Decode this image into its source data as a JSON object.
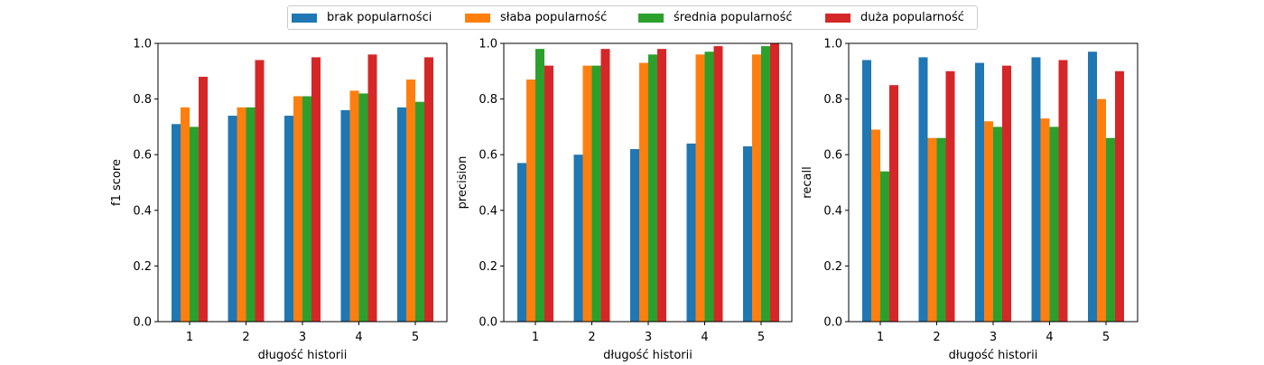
{
  "legend": {
    "items": [
      {
        "label": "brak popularności",
        "color": "#1f77b4"
      },
      {
        "label": "słaba popularność",
        "color": "#ff7f0e"
      },
      {
        "label": "średnia popularność",
        "color": "#2ca02c"
      },
      {
        "label": "duża popularność",
        "color": "#d62728"
      }
    ]
  },
  "chart_data": [
    {
      "type": "bar",
      "xlabel": "długość historii",
      "ylabel": "f1 score",
      "categories": [
        "1",
        "2",
        "3",
        "4",
        "5"
      ],
      "ylim": [
        0,
        1.0
      ],
      "yticks": [
        "0.0",
        "0.2",
        "0.4",
        "0.6",
        "0.8",
        "1.0"
      ],
      "series": [
        {
          "name": "brak popularności",
          "values": [
            0.71,
            0.74,
            0.74,
            0.76,
            0.77
          ]
        },
        {
          "name": "słaba popularność",
          "values": [
            0.77,
            0.77,
            0.81,
            0.83,
            0.87
          ]
        },
        {
          "name": "średnia popularność",
          "values": [
            0.7,
            0.77,
            0.81,
            0.82,
            0.79
          ]
        },
        {
          "name": "duża popularność",
          "values": [
            0.88,
            0.94,
            0.95,
            0.96,
            0.95
          ]
        }
      ]
    },
    {
      "type": "bar",
      "xlabel": "długość historii",
      "ylabel": "precision",
      "categories": [
        "1",
        "2",
        "3",
        "4",
        "5"
      ],
      "ylim": [
        0,
        1.0
      ],
      "yticks": [
        "0.0",
        "0.2",
        "0.4",
        "0.6",
        "0.8",
        "1.0"
      ],
      "series": [
        {
          "name": "brak popularności",
          "values": [
            0.57,
            0.6,
            0.62,
            0.64,
            0.63
          ]
        },
        {
          "name": "słaba popularność",
          "values": [
            0.87,
            0.92,
            0.93,
            0.96,
            0.96
          ]
        },
        {
          "name": "średnia popularność",
          "values": [
            0.98,
            0.92,
            0.96,
            0.97,
            0.99
          ]
        },
        {
          "name": "duża popularność",
          "values": [
            0.92,
            0.98,
            0.98,
            0.99,
            1.0
          ]
        }
      ]
    },
    {
      "type": "bar",
      "xlabel": "długość historii",
      "ylabel": "recall",
      "categories": [
        "1",
        "2",
        "3",
        "4",
        "5"
      ],
      "ylim": [
        0,
        1.0
      ],
      "yticks": [
        "0.0",
        "0.2",
        "0.4",
        "0.6",
        "0.8",
        "1.0"
      ],
      "series": [
        {
          "name": "brak popularności",
          "values": [
            0.94,
            0.95,
            0.93,
            0.95,
            0.97
          ]
        },
        {
          "name": "słaba popularność",
          "values": [
            0.69,
            0.66,
            0.72,
            0.73,
            0.8
          ]
        },
        {
          "name": "średnia popularność",
          "values": [
            0.54,
            0.66,
            0.7,
            0.7,
            0.66
          ]
        },
        {
          "name": "duża popularność",
          "values": [
            0.85,
            0.9,
            0.92,
            0.94,
            0.9
          ]
        }
      ]
    }
  ]
}
